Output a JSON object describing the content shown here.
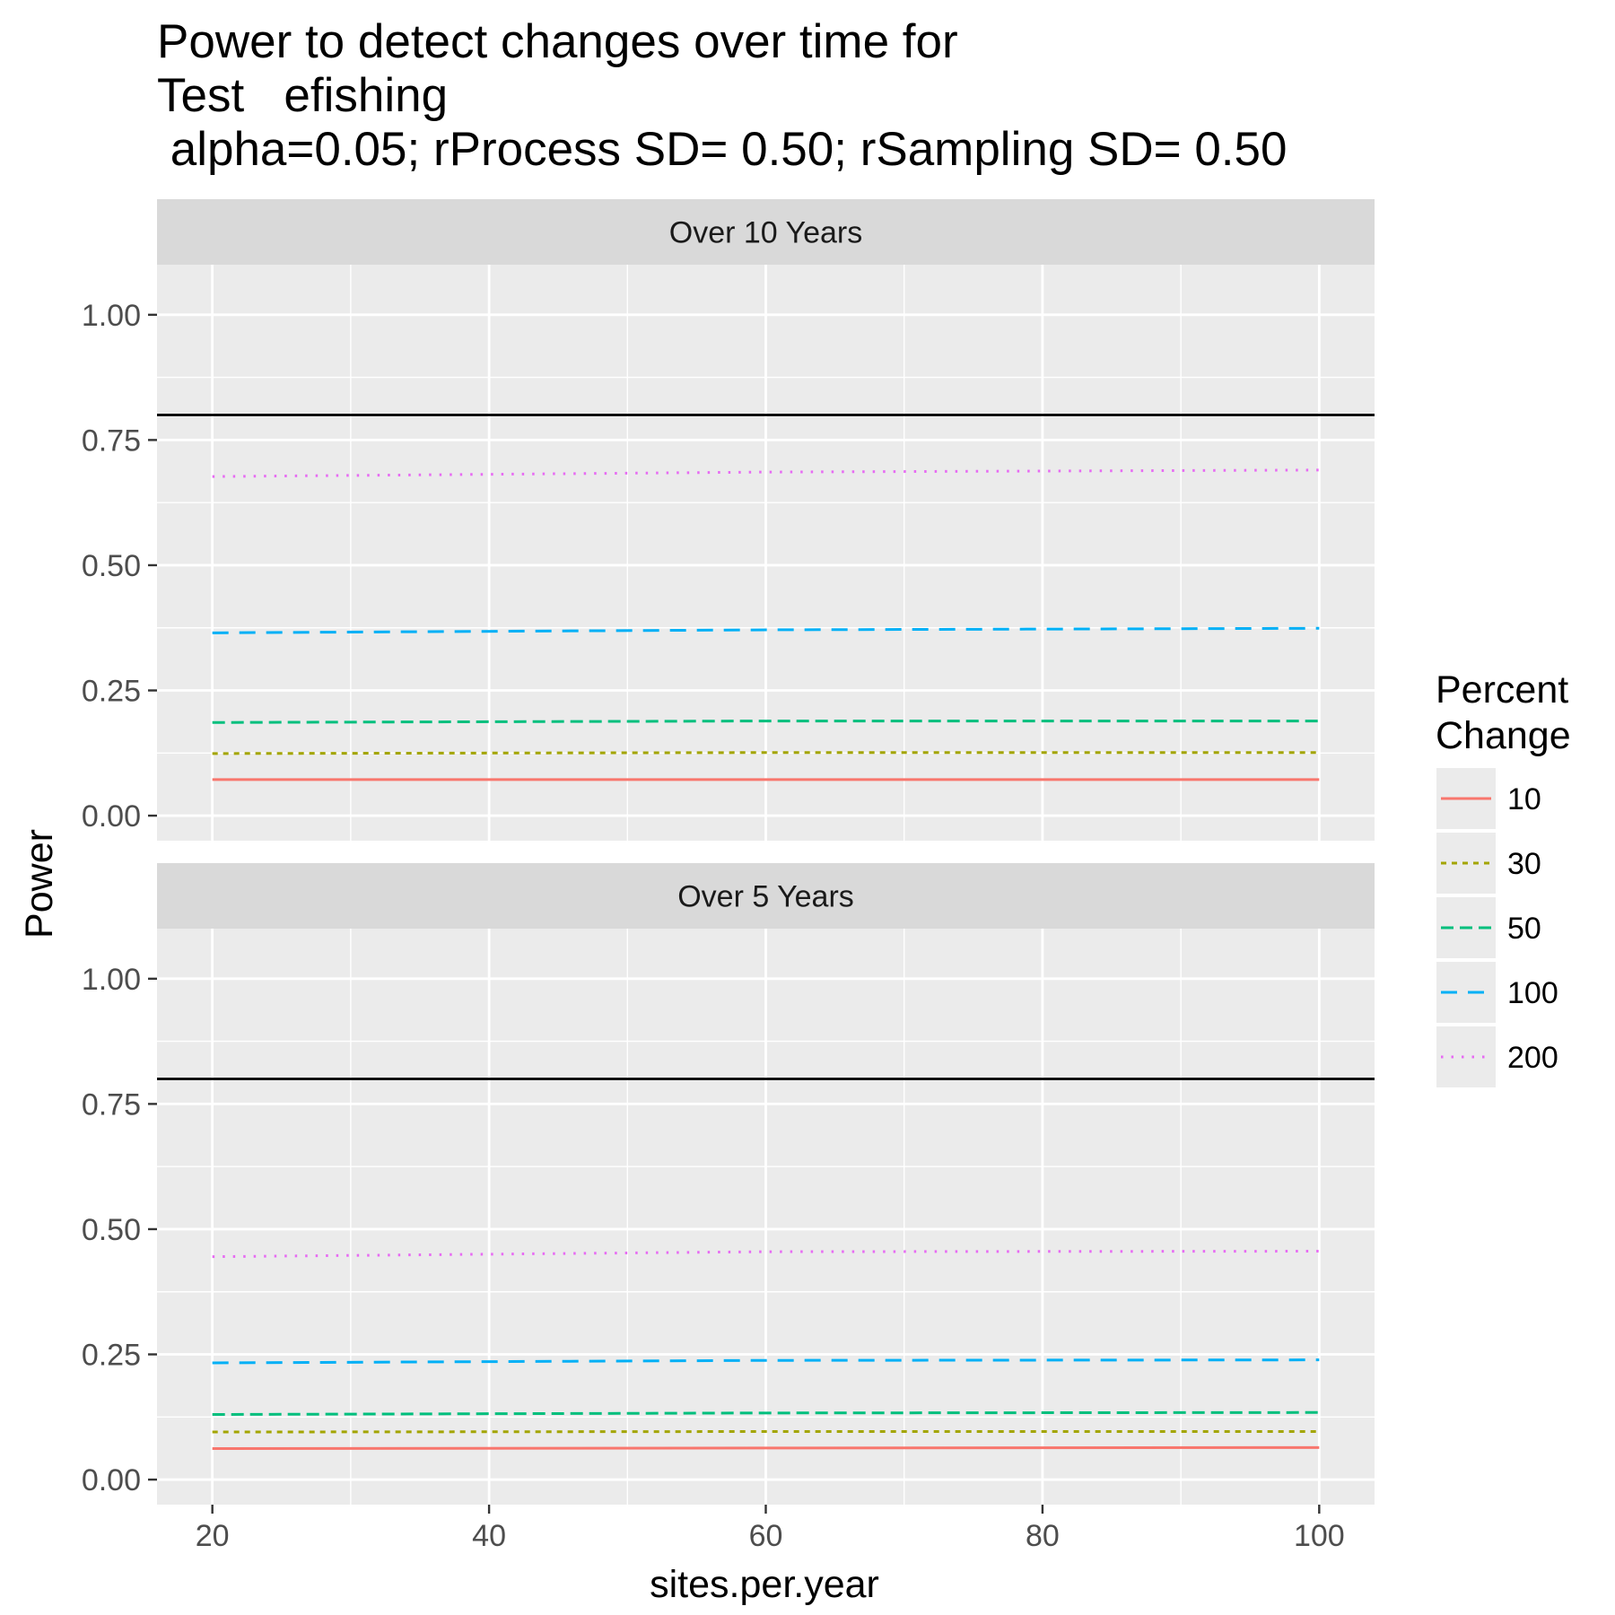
{
  "chart_data": {
    "type": "line",
    "title_lines": [
      "Power to detect changes over time for",
      "Test   efishing",
      " alpha=0.05; rProcess SD= 0.50; rSampling SD= 0.50"
    ],
    "xlabel": "sites.per.year",
    "ylabel": "Power",
    "xlim": [
      16,
      104
    ],
    "ylim": [
      -0.05,
      1.1
    ],
    "x_ticks": [
      20,
      40,
      60,
      80,
      100
    ],
    "x_tick_labels": [
      "20",
      "40",
      "60",
      "80",
      "100"
    ],
    "y_ticks": [
      0,
      0.25,
      0.5,
      0.75,
      1.0
    ],
    "y_tick_labels": [
      "0.00",
      "0.25",
      "0.50",
      "0.75",
      "1.00"
    ],
    "grid": true,
    "reference_line": 0.8,
    "legend": {
      "title_lines": [
        "Percent",
        "Change"
      ],
      "placement": "right"
    },
    "series_styles": {
      "10": {
        "color": "#F8766D",
        "dash": ""
      },
      "30": {
        "color": "#A3A500",
        "dash": "6 6"
      },
      "50": {
        "color": "#00BF7D",
        "dash": "14 7"
      },
      "100": {
        "color": "#00B0F6",
        "dash": "18 12"
      },
      "200": {
        "color": "#E76BF3",
        "dash": "2.5 9"
      }
    },
    "panels": [
      {
        "strip": "Over 10 Years",
        "series": [
          {
            "name": "10",
            "x": [
              20,
              60,
              100
            ],
            "y": [
              0.072,
              0.072,
              0.072
            ]
          },
          {
            "name": "30",
            "x": [
              20,
              60,
              100
            ],
            "y": [
              0.124,
              0.126,
              0.126
            ]
          },
          {
            "name": "50",
            "x": [
              20,
              60,
              100
            ],
            "y": [
              0.186,
              0.189,
              0.189
            ]
          },
          {
            "name": "100",
            "x": [
              20,
              60,
              100
            ],
            "y": [
              0.365,
              0.371,
              0.374
            ]
          },
          {
            "name": "200",
            "x": [
              20,
              60,
              100
            ],
            "y": [
              0.677,
              0.686,
              0.69
            ]
          }
        ]
      },
      {
        "strip": "Over 5 Years",
        "series": [
          {
            "name": "10",
            "x": [
              20,
              60,
              100
            ],
            "y": [
              0.062,
              0.063,
              0.064
            ]
          },
          {
            "name": "30",
            "x": [
              20,
              60,
              100
            ],
            "y": [
              0.095,
              0.096,
              0.096
            ]
          },
          {
            "name": "50",
            "x": [
              20,
              60,
              100
            ],
            "y": [
              0.13,
              0.133,
              0.134
            ]
          },
          {
            "name": "100",
            "x": [
              20,
              60,
              100
            ],
            "y": [
              0.233,
              0.238,
              0.239
            ]
          },
          {
            "name": "200",
            "x": [
              20,
              60,
              100
            ],
            "y": [
              0.445,
              0.455,
              0.456
            ]
          }
        ]
      }
    ]
  }
}
